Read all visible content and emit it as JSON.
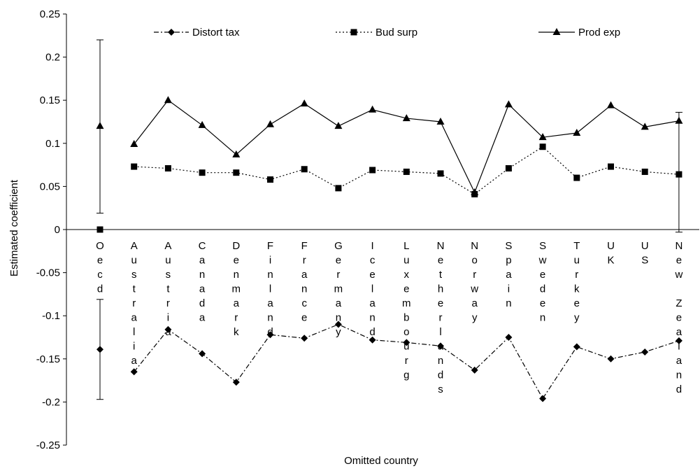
{
  "chart_data": {
    "type": "line",
    "xlabel": "Omitted country",
    "ylabel": "Estimated coefficient",
    "ylim": [
      -0.25,
      0.25
    ],
    "yticks": [
      "0.25",
      "0.2",
      "0.15",
      "0.1",
      "0.05",
      "0",
      "-0.05",
      "-0.1",
      "-0.15",
      "-0.2",
      "-0.25"
    ],
    "ytick_values": [
      0.25,
      0.2,
      0.15,
      0.1,
      0.05,
      0,
      -0.05,
      -0.1,
      -0.15,
      -0.2,
      -0.25
    ],
    "grid": false,
    "legend_position": "top",
    "categories": [
      "Oecd",
      "Australia",
      "Austria",
      "Canada",
      "Denmark",
      "Finland",
      "France",
      "Germany",
      "Iceland",
      "Luxembourg",
      "Netherlands",
      "Norway",
      "Spain",
      "Sweden",
      "Turkey",
      "UK",
      "US",
      "New Zealand"
    ],
    "series": [
      {
        "name": "Distort tax",
        "marker": "diamond",
        "dash": "dashdot",
        "oecd_value": -0.139,
        "oecd_error": [
          -0.197,
          -0.081
        ],
        "values": [
          null,
          -0.165,
          -0.116,
          -0.144,
          -0.177,
          -0.122,
          -0.126,
          -0.11,
          -0.128,
          -0.131,
          -0.135,
          -0.163,
          -0.125,
          -0.196,
          -0.136,
          -0.15,
          -0.142,
          -0.129
        ]
      },
      {
        "name": "Bud surp",
        "marker": "square",
        "dash": "dotted",
        "oecd_value": 0.0,
        "values": [
          null,
          0.073,
          0.071,
          0.066,
          0.066,
          0.058,
          0.07,
          0.048,
          0.069,
          0.067,
          0.065,
          0.041,
          0.071,
          0.096,
          0.06,
          0.073,
          0.067,
          0.064
        ]
      },
      {
        "name": "Prod exp",
        "marker": "triangle",
        "dash": "solid",
        "oecd_value": 0.12,
        "oecd_error": [
          0.019,
          0.22
        ],
        "values": [
          null,
          0.099,
          0.15,
          0.121,
          0.087,
          0.122,
          0.146,
          0.12,
          0.139,
          0.129,
          0.125,
          0.043,
          0.145,
          0.107,
          0.112,
          0.144,
          0.119,
          0.126
        ],
        "last_error": [
          -0.003,
          0.136
        ]
      }
    ]
  }
}
